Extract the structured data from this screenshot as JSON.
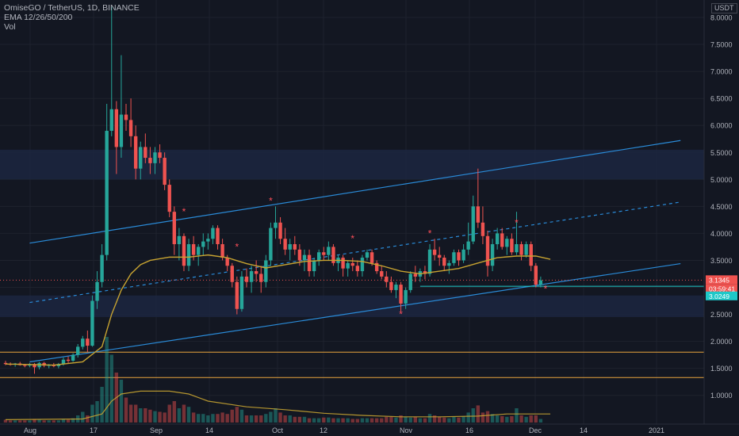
{
  "legend": {
    "symbol_line": "OmiseGO / TetherUS, 1D, BINANCE",
    "ema_line": "EMA 12/26/50/200",
    "vol_line": "Vol"
  },
  "axis_currency": "USDT",
  "colors": {
    "background": "#131722",
    "grid": "#1e222d",
    "up": "#26a69a",
    "down": "#ef5350",
    "ema": "#c7a331",
    "channel": "#2a8bd8",
    "support": "#e8a33d",
    "zone": "#1c2640",
    "marker": "#ff4f5a",
    "price_label_red": "#ef5350",
    "price_label_teal": "#1ec8c8"
  },
  "chart_data": {
    "type": "candlestick",
    "y_ticks": [
      "8.0000",
      "7.5000",
      "7.0000",
      "6.5000",
      "6.0000",
      "5.5000",
      "5.0000",
      "4.5000",
      "4.0000",
      "3.5000",
      "3.0000",
      "2.5000",
      "2.0000",
      "1.5000",
      "1.0000"
    ],
    "x_tick_labels": [
      "Aug",
      "17",
      "Sep",
      "14",
      "Oct",
      "12",
      "Nov",
      "16",
      "Dec",
      "14",
      "2021"
    ],
    "ylim": [
      0.8,
      8.2
    ],
    "price_labels": [
      {
        "label": "3.1345",
        "value": 3.1345,
        "color": "red"
      },
      {
        "label": "03:59:41",
        "value": 3.03,
        "color": "red"
      },
      {
        "label": "3.0249",
        "value": 3.0249,
        "color": "teal"
      }
    ],
    "zones": [
      [
        5.0,
        5.55
      ],
      [
        2.45,
        2.85
      ]
    ],
    "support_lines": [
      1.8,
      1.33
    ],
    "channel": {
      "upper": [
        [
          5,
          3.82
        ],
        [
          140,
          5.72
        ]
      ],
      "lower": [
        [
          5,
          1.62
        ],
        [
          140,
          3.44
        ]
      ],
      "mid": [
        [
          5,
          2.72
        ],
        [
          140,
          4.58
        ]
      ]
    },
    "asterisk_markers": [
      {
        "day": 37,
        "price": 4.4
      },
      {
        "day": 48,
        "price": 3.75
      },
      {
        "day": 55,
        "price": 4.6
      },
      {
        "day": 72,
        "price": 3.9
      },
      {
        "day": 82,
        "price": 2.5
      },
      {
        "day": 88,
        "price": 4.0
      },
      {
        "day": 106,
        "price": 4.2
      },
      {
        "day": 112,
        "price": 2.97
      }
    ],
    "candles": [
      [
        1.6,
        1.64,
        1.56,
        1.58
      ],
      [
        1.58,
        1.61,
        1.55,
        1.57
      ],
      [
        1.57,
        1.6,
        1.53,
        1.59
      ],
      [
        1.59,
        1.62,
        1.55,
        1.56
      ],
      [
        1.56,
        1.58,
        1.52,
        1.55
      ],
      [
        1.55,
        1.6,
        1.52,
        1.58
      ],
      [
        1.58,
        1.6,
        1.4,
        1.52
      ],
      [
        1.52,
        1.62,
        1.48,
        1.6
      ],
      [
        1.6,
        1.62,
        1.52,
        1.55
      ],
      [
        1.55,
        1.58,
        1.5,
        1.56
      ],
      [
        1.56,
        1.6,
        1.52,
        1.54
      ],
      [
        1.54,
        1.6,
        1.5,
        1.58
      ],
      [
        1.58,
        1.7,
        1.55,
        1.66
      ],
      [
        1.66,
        1.72,
        1.6,
        1.64
      ],
      [
        1.64,
        1.78,
        1.62,
        1.75
      ],
      [
        1.75,
        1.95,
        1.7,
        1.9
      ],
      [
        1.9,
        2.1,
        1.85,
        2.05
      ],
      [
        2.05,
        2.2,
        1.8,
        1.92
      ],
      [
        1.92,
        2.85,
        1.9,
        2.75
      ],
      [
        2.75,
        3.3,
        2.6,
        3.1
      ],
      [
        3.1,
        3.8,
        3.0,
        3.6
      ],
      [
        3.6,
        6.4,
        3.5,
        5.9
      ],
      [
        5.9,
        8.2,
        5.8,
        6.3
      ],
      [
        6.3,
        6.45,
        5.1,
        5.6
      ],
      [
        5.6,
        7.3,
        5.4,
        6.2
      ],
      [
        6.2,
        6.4,
        5.9,
        6.1
      ],
      [
        6.1,
        6.5,
        5.6,
        5.8
      ],
      [
        5.8,
        6.0,
        5.0,
        5.2
      ],
      [
        5.2,
        5.7,
        5.0,
        5.6
      ],
      [
        5.6,
        5.85,
        5.3,
        5.4
      ],
      [
        5.4,
        5.6,
        5.1,
        5.3
      ],
      [
        5.3,
        5.6,
        5.1,
        5.5
      ],
      [
        5.5,
        5.65,
        5.3,
        5.4
      ],
      [
        5.4,
        5.5,
        4.8,
        4.9
      ],
      [
        4.9,
        5.0,
        4.3,
        4.4
      ],
      [
        4.4,
        4.5,
        3.6,
        3.8
      ],
      [
        3.8,
        4.1,
        3.5,
        3.95
      ],
      [
        3.95,
        4.0,
        3.3,
        3.4
      ],
      [
        3.4,
        3.9,
        3.3,
        3.8
      ],
      [
        3.8,
        3.95,
        3.5,
        3.6
      ],
      [
        3.6,
        3.8,
        3.4,
        3.75
      ],
      [
        3.75,
        4.0,
        3.6,
        3.85
      ],
      [
        3.85,
        4.0,
        3.7,
        3.9
      ],
      [
        3.9,
        4.15,
        3.8,
        4.1
      ],
      [
        4.1,
        4.15,
        3.7,
        3.8
      ],
      [
        3.8,
        3.9,
        3.5,
        3.55
      ],
      [
        3.55,
        3.6,
        3.3,
        3.4
      ],
      [
        3.4,
        3.45,
        3.0,
        3.1
      ],
      [
        3.1,
        3.2,
        2.5,
        2.6
      ],
      [
        2.6,
        3.3,
        2.55,
        3.2
      ],
      [
        3.2,
        3.35,
        3.0,
        3.1
      ],
      [
        3.1,
        3.4,
        2.9,
        3.3
      ],
      [
        3.3,
        3.5,
        3.1,
        3.25
      ],
      [
        3.25,
        3.4,
        2.9,
        3.1
      ],
      [
        3.1,
        3.6,
        3.0,
        3.5
      ],
      [
        3.5,
        4.2,
        3.4,
        4.1
      ],
      [
        4.1,
        4.5,
        3.9,
        4.2
      ],
      [
        4.2,
        4.3,
        3.8,
        3.9
      ],
      [
        3.9,
        4.1,
        3.6,
        3.7
      ],
      [
        3.7,
        3.9,
        3.5,
        3.8
      ],
      [
        3.8,
        3.95,
        3.6,
        3.7
      ],
      [
        3.7,
        3.8,
        3.4,
        3.5
      ],
      [
        3.5,
        3.7,
        3.3,
        3.6
      ],
      [
        3.6,
        3.7,
        3.2,
        3.3
      ],
      [
        3.3,
        3.55,
        3.2,
        3.5
      ],
      [
        3.5,
        3.7,
        3.4,
        3.65
      ],
      [
        3.65,
        3.75,
        3.5,
        3.6
      ],
      [
        3.6,
        3.85,
        3.5,
        3.75
      ],
      [
        3.75,
        3.8,
        3.4,
        3.45
      ],
      [
        3.45,
        3.6,
        3.3,
        3.55
      ],
      [
        3.55,
        3.6,
        3.2,
        3.35
      ],
      [
        3.35,
        3.5,
        3.2,
        3.45
      ],
      [
        3.45,
        3.55,
        3.3,
        3.4
      ],
      [
        3.4,
        3.5,
        3.2,
        3.3
      ],
      [
        3.3,
        3.6,
        3.2,
        3.55
      ],
      [
        3.55,
        3.7,
        3.5,
        3.65
      ],
      [
        3.65,
        3.7,
        3.4,
        3.45
      ],
      [
        3.45,
        3.5,
        3.25,
        3.3
      ],
      [
        3.3,
        3.4,
        3.15,
        3.2
      ],
      [
        3.2,
        3.3,
        3.0,
        3.1
      ],
      [
        3.1,
        3.2,
        2.9,
        2.95
      ],
      [
        2.95,
        3.1,
        2.8,
        3.05
      ],
      [
        3.05,
        3.1,
        2.55,
        2.7
      ],
      [
        2.7,
        3.0,
        2.6,
        2.95
      ],
      [
        2.95,
        3.3,
        2.9,
        3.25
      ],
      [
        3.25,
        3.4,
        3.1,
        3.2
      ],
      [
        3.2,
        3.35,
        3.1,
        3.3
      ],
      [
        3.3,
        3.4,
        3.15,
        3.25
      ],
      [
        3.25,
        3.8,
        3.2,
        3.7
      ],
      [
        3.7,
        3.9,
        3.5,
        3.6
      ],
      [
        3.6,
        3.75,
        3.4,
        3.55
      ],
      [
        3.55,
        3.6,
        3.3,
        3.4
      ],
      [
        3.4,
        3.5,
        3.25,
        3.45
      ],
      [
        3.45,
        3.7,
        3.4,
        3.65
      ],
      [
        3.65,
        3.7,
        3.4,
        3.5
      ],
      [
        3.5,
        3.8,
        3.45,
        3.7
      ],
      [
        3.7,
        4.2,
        3.6,
        3.85
      ],
      [
        3.85,
        4.7,
        3.8,
        4.5
      ],
      [
        4.5,
        5.2,
        4.1,
        4.2
      ],
      [
        4.2,
        4.5,
        3.8,
        3.95
      ],
      [
        3.95,
        4.05,
        3.2,
        3.4
      ],
      [
        3.4,
        3.9,
        3.3,
        3.8
      ],
      [
        3.8,
        4.1,
        3.7,
        4.0
      ],
      [
        4.0,
        4.1,
        3.7,
        3.75
      ],
      [
        3.75,
        3.95,
        3.6,
        3.9
      ],
      [
        3.9,
        4.0,
        3.6,
        3.65
      ],
      [
        3.65,
        4.4,
        3.6,
        3.8
      ],
      [
        3.8,
        3.85,
        3.5,
        3.6
      ],
      [
        3.6,
        3.85,
        3.55,
        3.8
      ],
      [
        3.8,
        3.85,
        3.3,
        3.4
      ],
      [
        3.4,
        3.45,
        3.0,
        3.05
      ],
      [
        3.05,
        3.2,
        3.0,
        3.13
      ]
    ],
    "ema": [
      [
        0,
        1.58
      ],
      [
        10,
        1.56
      ],
      [
        16,
        1.62
      ],
      [
        20,
        1.9
      ],
      [
        22,
        2.5
      ],
      [
        24,
        2.95
      ],
      [
        26,
        3.25
      ],
      [
        28,
        3.42
      ],
      [
        30,
        3.5
      ],
      [
        34,
        3.56
      ],
      [
        38,
        3.56
      ],
      [
        42,
        3.6
      ],
      [
        46,
        3.55
      ],
      [
        50,
        3.44
      ],
      [
        54,
        3.36
      ],
      [
        58,
        3.42
      ],
      [
        62,
        3.48
      ],
      [
        66,
        3.5
      ],
      [
        70,
        3.5
      ],
      [
        74,
        3.48
      ],
      [
        78,
        3.4
      ],
      [
        82,
        3.3
      ],
      [
        86,
        3.25
      ],
      [
        90,
        3.3
      ],
      [
        94,
        3.35
      ],
      [
        98,
        3.45
      ],
      [
        102,
        3.55
      ],
      [
        106,
        3.58
      ],
      [
        110,
        3.58
      ],
      [
        113,
        3.52
      ]
    ],
    "volume": [
      0.04,
      0.03,
      0.03,
      0.03,
      0.03,
      0.03,
      0.05,
      0.04,
      0.03,
      0.03,
      0.03,
      0.03,
      0.05,
      0.04,
      0.06,
      0.1,
      0.15,
      0.1,
      0.25,
      0.3,
      0.5,
      1.2,
      0.95,
      0.7,
      0.6,
      0.35,
      0.25,
      0.25,
      0.2,
      0.2,
      0.18,
      0.16,
      0.15,
      0.14,
      0.25,
      0.3,
      0.2,
      0.25,
      0.22,
      0.14,
      0.12,
      0.12,
      0.1,
      0.12,
      0.12,
      0.14,
      0.12,
      0.18,
      0.22,
      0.18,
      0.1,
      0.1,
      0.1,
      0.1,
      0.12,
      0.15,
      0.2,
      0.14,
      0.1,
      0.1,
      0.08,
      0.08,
      0.08,
      0.06,
      0.06,
      0.06,
      0.07,
      0.07,
      0.06,
      0.06,
      0.06,
      0.06,
      0.05,
      0.05,
      0.06,
      0.06,
      0.06,
      0.06,
      0.06,
      0.08,
      0.08,
      0.07,
      0.1,
      0.08,
      0.07,
      0.08,
      0.06,
      0.06,
      0.12,
      0.1,
      0.08,
      0.07,
      0.06,
      0.08,
      0.07,
      0.09,
      0.14,
      0.2,
      0.24,
      0.14,
      0.16,
      0.12,
      0.1,
      0.09,
      0.08,
      0.09,
      0.2,
      0.1,
      0.08,
      0.1,
      0.1,
      0.05
    ],
    "volume_ma": [
      [
        0,
        0.04
      ],
      [
        16,
        0.05
      ],
      [
        20,
        0.12
      ],
      [
        22,
        0.3
      ],
      [
        24,
        0.4
      ],
      [
        28,
        0.44
      ],
      [
        34,
        0.44
      ],
      [
        38,
        0.4
      ],
      [
        42,
        0.3
      ],
      [
        50,
        0.22
      ],
      [
        58,
        0.18
      ],
      [
        66,
        0.13
      ],
      [
        74,
        0.1
      ],
      [
        82,
        0.08
      ],
      [
        90,
        0.08
      ],
      [
        98,
        0.09
      ],
      [
        104,
        0.12
      ],
      [
        113,
        0.12
      ]
    ]
  }
}
